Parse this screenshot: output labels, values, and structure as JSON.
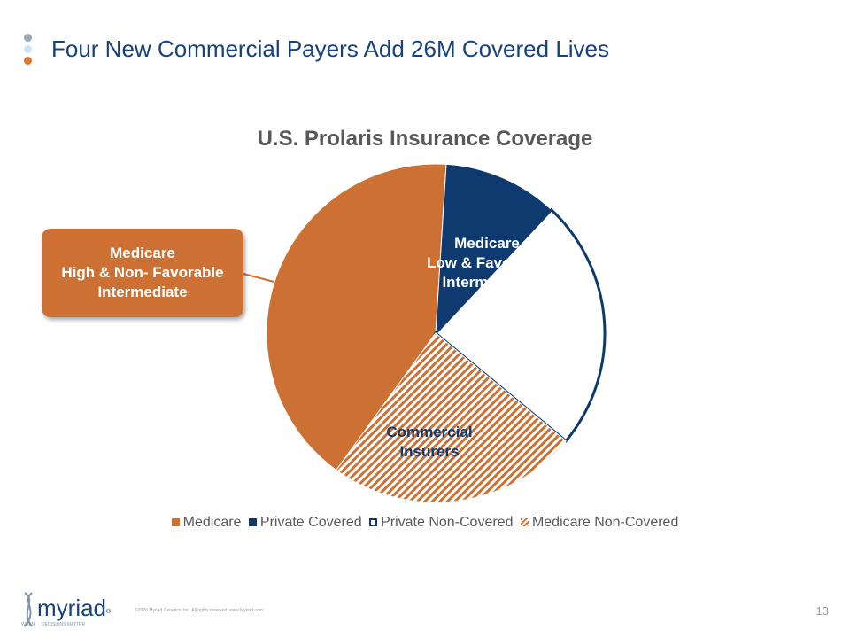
{
  "slide": {
    "title": "Four New Commercial Payers Add 26M Covered Lives",
    "page_number": "13",
    "copyright": "©2020 Myriad Genetics, Inc. All rights reserved. www.Myriad.com",
    "bullet_colors": [
      "#9aa7b4",
      "#cfe2ef",
      "#e0762d"
    ]
  },
  "logo": {
    "wordmark": "myriad",
    "registered": "®",
    "tagline_left": "WHEN",
    "tagline_right": "DECISIONS MATTER"
  },
  "chart_data": {
    "type": "pie",
    "title": "U.S. Prolaris Insurance Coverage",
    "start_angle_deg": 216,
    "direction": "clockwise",
    "series": [
      {
        "name": "Medicare",
        "value": 41,
        "color": "#cc7133",
        "fill": "solid"
      },
      {
        "name": "Private Covered",
        "value": 11,
        "color": "#0f3a6f",
        "fill": "solid"
      },
      {
        "name": "Private Non-Covered",
        "value": 24,
        "color": "#ffffff",
        "outline": "#0f3a6f",
        "fill": "outline"
      },
      {
        "name": "Medicare Non-Covered",
        "value": 24,
        "color": "#cc7133",
        "fill": "hatched"
      }
    ],
    "slice_labels": [
      {
        "text": "Medicare\nLow & Favorable\nIntermediate",
        "color": "#ffffff"
      },
      {
        "text": "Commercial\nInsurers",
        "color": "#0f3a6f"
      }
    ],
    "callout": {
      "text": "Medicare\nHigh & Non- Favorable\nIntermediate",
      "color": "#cc7133"
    },
    "legend_position": "bottom"
  }
}
